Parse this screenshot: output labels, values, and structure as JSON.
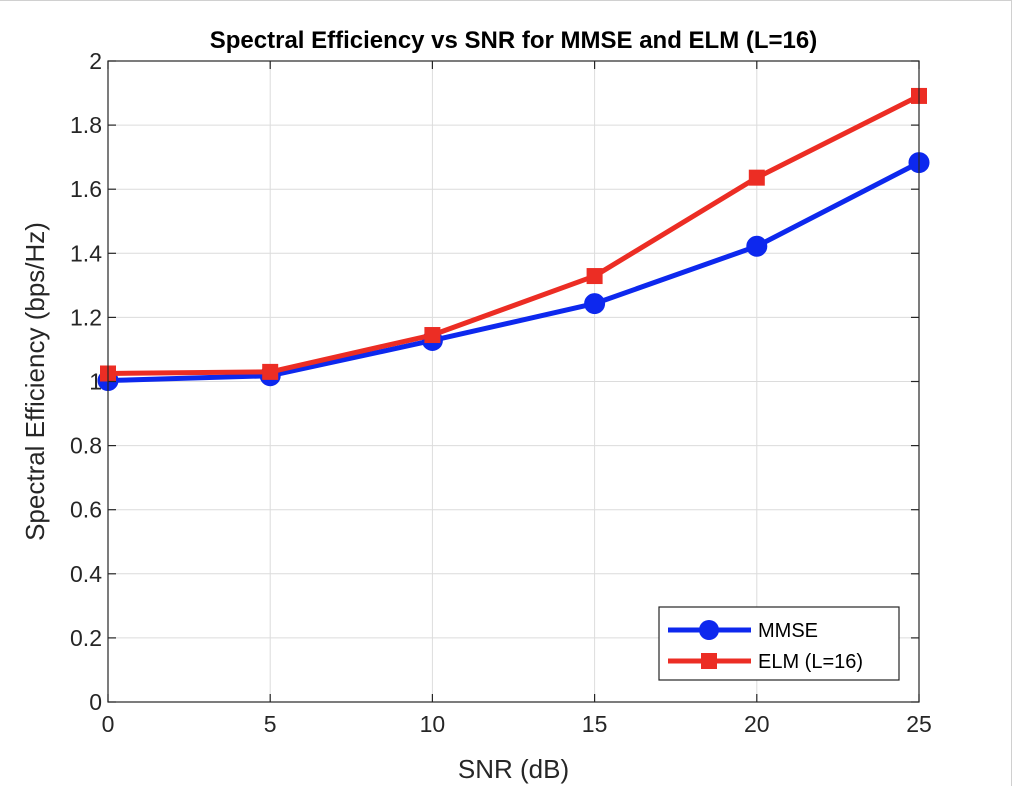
{
  "chart_data": {
    "type": "line",
    "title": "Spectral Efficiency vs SNR for MMSE and ELM (L=16)",
    "xlabel": "SNR (dB)",
    "ylabel": "Spectral Efficiency (bps/Hz)",
    "x": [
      0,
      5,
      10,
      15,
      20,
      25
    ],
    "xlim": [
      0,
      25
    ],
    "ylim": [
      0,
      2
    ],
    "xticks": [
      0,
      5,
      10,
      15,
      20,
      25
    ],
    "yticks": [
      0,
      0.2,
      0.4,
      0.6,
      0.8,
      1,
      1.2,
      1.4,
      1.6,
      1.8,
      2
    ],
    "xtick_labels": [
      "0",
      "5",
      "10",
      "15",
      "20",
      "25"
    ],
    "ytick_labels": [
      "0",
      "0.2",
      "0.4",
      "0.6",
      "0.8",
      "1",
      "1.2",
      "1.4",
      "1.6",
      "1.8",
      "2"
    ],
    "grid": true,
    "legend_position": "bottom-right",
    "series": [
      {
        "name": "MMSE",
        "values": [
          1.003,
          1.018,
          1.128,
          1.243,
          1.422,
          1.683
        ],
        "color": "#0d28ee",
        "marker": "circle"
      },
      {
        "name": "ELM (L=16)",
        "values": [
          1.025,
          1.03,
          1.145,
          1.329,
          1.636,
          1.891
        ],
        "color": "#ec2d24",
        "marker": "square"
      }
    ]
  }
}
